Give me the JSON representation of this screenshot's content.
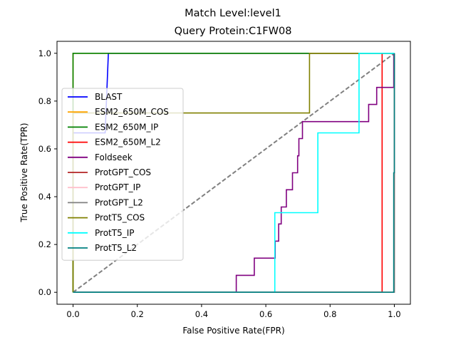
{
  "chart_data": {
    "type": "line",
    "title": "Match Level:level1",
    "subtitle": "Query Protein:C1FW08",
    "xlabel": "False Positive Rate(FPR)",
    "ylabel": "True Positive Rate(TPR)",
    "xlim": [
      -0.05,
      1.05
    ],
    "ylim": [
      -0.05,
      1.05
    ],
    "xticks": [
      "0.0",
      "0.2",
      "0.4",
      "0.6",
      "0.8",
      "1.0"
    ],
    "yticks": [
      "0.0",
      "0.2",
      "0.4",
      "0.6",
      "0.8",
      "1.0"
    ],
    "xtick_values": [
      0,
      0.2,
      0.4,
      0.6,
      0.8,
      1.0
    ],
    "ytick_values": [
      0,
      0.2,
      0.4,
      0.6,
      0.8,
      1.0
    ],
    "grid": false,
    "legend_position": "center-left",
    "diagonal": {
      "x": [
        0,
        1
      ],
      "y": [
        0,
        1
      ],
      "color": "#808080",
      "style": "dashed"
    },
    "series": [
      {
        "name": "BLAST",
        "color": "#0000ff",
        "x": [
          0,
          0,
          0.1,
          0.11,
          0.11,
          1.0
        ],
        "y": [
          0,
          0.667,
          0.667,
          1.0,
          1.0,
          1.0
        ]
      },
      {
        "name": "ESM2_650M_COS",
        "color": "#ffa500",
        "x": [
          0,
          0,
          1.0
        ],
        "y": [
          0,
          1.0,
          1.0
        ]
      },
      {
        "name": "ESM2_650M_IP",
        "color": "#008000",
        "x": [
          0,
          0,
          1.0
        ],
        "y": [
          0,
          1.0,
          1.0
        ]
      },
      {
        "name": "ESM2_650M_L2",
        "color": "#ff0000",
        "x": [
          0,
          0.962,
          0.962,
          1.0
        ],
        "y": [
          0,
          0,
          1.0,
          1.0
        ]
      },
      {
        "name": "Foldseek",
        "color": "#800080",
        "x": [
          0,
          0.508,
          0.508,
          0.564,
          0.564,
          0.629,
          0.629,
          0.64,
          0.64,
          0.648,
          0.648,
          0.664,
          0.664,
          0.683,
          0.683,
          0.699,
          0.699,
          0.703,
          0.703,
          0.714,
          0.714,
          0.723,
          0.723,
          0.747,
          0.747,
          0.747,
          0.747,
          0.92,
          0.92,
          0.945,
          0.945,
          0.998,
          0.998
        ],
        "y": [
          0,
          0,
          0.071,
          0.071,
          0.143,
          0.143,
          0.214,
          0.214,
          0.286,
          0.286,
          0.357,
          0.357,
          0.429,
          0.429,
          0.5,
          0.5,
          0.571,
          0.571,
          0.643,
          0.643,
          0.714,
          0.714,
          0.714,
          0.714,
          0.714,
          0.714,
          0.714,
          0.714,
          0.786,
          0.786,
          0.857,
          0.857,
          1.0
        ]
      },
      {
        "name": "ProtGPT_COS",
        "color": "#b22222",
        "x": [
          0,
          1.0,
          1.0
        ],
        "y": [
          0,
          0,
          1.0
        ]
      },
      {
        "name": "ProtGPT_IP",
        "color": "#ffc0cb",
        "x": [
          0,
          1.0,
          1.0
        ],
        "y": [
          0,
          0,
          1.0
        ]
      },
      {
        "name": "ProtGPT_L2",
        "color": "#808080",
        "x": [
          0,
          1.0,
          1.0
        ],
        "y": [
          0,
          0,
          1.0
        ]
      },
      {
        "name": "ProtT5_COS",
        "color": "#808000",
        "x": [
          0,
          0,
          0.736,
          0.736,
          1.0
        ],
        "y": [
          0,
          0.75,
          0.75,
          1.0,
          1.0
        ]
      },
      {
        "name": "ProtT5_IP",
        "color": "#00ffff",
        "x": [
          0,
          0.628,
          0.628,
          0.762,
          0.762,
          0.89,
          0.89,
          1.0
        ],
        "y": [
          0,
          0,
          0.333,
          0.333,
          0.667,
          0.667,
          1.0,
          1.0
        ]
      },
      {
        "name": "ProtT5_L2",
        "color": "#008080",
        "x": [
          0,
          0.998,
          0.998,
          1.0,
          1.0
        ],
        "y": [
          0,
          0,
          0.5,
          0.5,
          1.0
        ]
      }
    ]
  }
}
